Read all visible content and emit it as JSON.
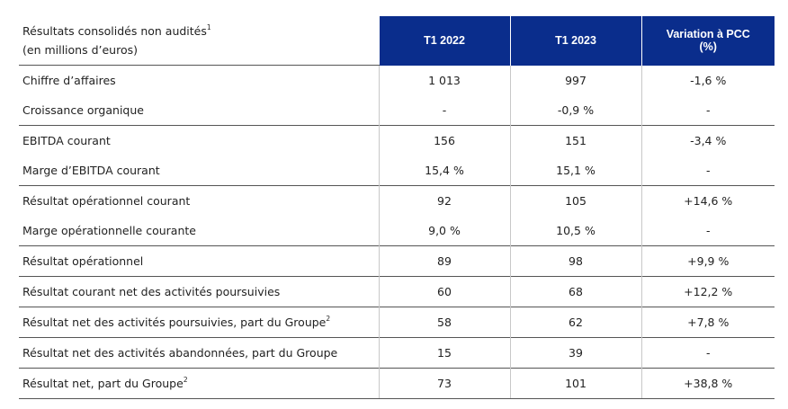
{
  "header": {
    "label_line1": "Résultats consolidés non audités",
    "label_sup": "1",
    "label_line2": "(en millions d’euros)",
    "col1": "T1 2022",
    "col2": "T1 2023",
    "col3_line1": "Variation à PCC",
    "col3_line2": "(%)"
  },
  "rows": [
    {
      "label": "Chiffre d’affaires",
      "sup": "",
      "t1_2022": "1 013",
      "t1_2023": "997",
      "variation": "-1,6 %"
    },
    {
      "label": "Croissance organique",
      "sup": "",
      "t1_2022": "-",
      "t1_2023": "-0,9 %",
      "variation": "-"
    },
    {
      "label": "EBITDA courant",
      "sup": "",
      "t1_2022": "156",
      "t1_2023": "151",
      "variation": "-3,4 %"
    },
    {
      "label": "Marge d’EBITDA courant",
      "sup": "",
      "t1_2022": "15,4 %",
      "t1_2023": "15,1 %",
      "variation": "-"
    },
    {
      "label": "Résultat opérationnel courant",
      "sup": "",
      "t1_2022": "92",
      "t1_2023": "105",
      "variation": "+14,6 %"
    },
    {
      "label": "Marge opérationnelle courante",
      "sup": "",
      "t1_2022": "9,0 %",
      "t1_2023": "10,5 %",
      "variation": "-"
    },
    {
      "label": "Résultat opérationnel",
      "sup": "",
      "t1_2022": "89",
      "t1_2023": "98",
      "variation": "+9,9 %"
    },
    {
      "label": "Résultat courant net des activités poursuivies",
      "sup": "",
      "t1_2022": "60",
      "t1_2023": "68",
      "variation": "+12,2 %"
    },
    {
      "label": "Résultat net des activités poursuivies, part du Groupe",
      "sup": "2",
      "t1_2022": "58",
      "t1_2023": "62",
      "variation": "+7,8 %"
    },
    {
      "label": "Résultat net des activités abandonnées, part du Groupe",
      "sup": "",
      "t1_2022": "15",
      "t1_2023": "39",
      "variation": "-"
    },
    {
      "label": "Résultat net, part du Groupe",
      "sup": "2",
      "t1_2022": "73",
      "t1_2023": "101",
      "variation": "+38,8 %"
    }
  ],
  "colors": {
    "header_bg": "#0a2d8c",
    "header_text": "#ffffff"
  }
}
